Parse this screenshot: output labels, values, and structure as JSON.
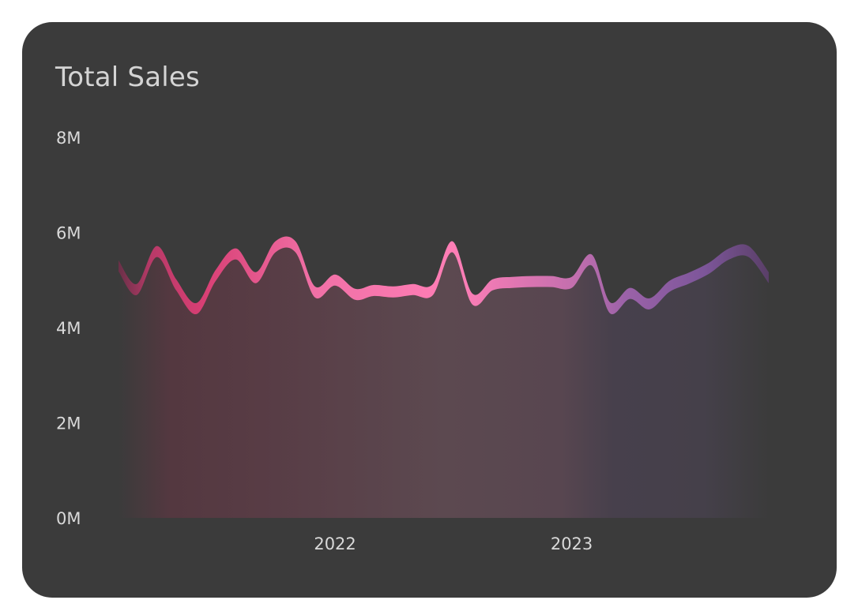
{
  "card": {
    "title": "Total Sales"
  },
  "colors": {
    "background": "#3b3b3b",
    "text": "#d4d4d4",
    "ribbon_start": "#c23a6e",
    "ribbon_mid": "#ff7eb6",
    "ribbon_end": "#7a4d8c"
  },
  "chart_data": {
    "type": "area",
    "title": "Total Sales",
    "xlabel": "",
    "ylabel": "",
    "ylim": [
      0,
      8000000
    ],
    "y_ticks": [
      {
        "value": 8000000,
        "label": "8M"
      },
      {
        "value": 6000000,
        "label": "6M"
      },
      {
        "value": 4000000,
        "label": "4M"
      },
      {
        "value": 2000000,
        "label": "2M"
      },
      {
        "value": 0,
        "label": "0M"
      }
    ],
    "x_ticks": [
      {
        "x": "2022-01-01",
        "label": "2022"
      },
      {
        "x": "2023-01-01",
        "label": "2023"
      }
    ],
    "x_range": [
      "2021-02-01",
      "2023-11-01"
    ],
    "grid": false,
    "legend": "none",
    "series": [
      {
        "x": [
          "2021-02-01",
          "2021-03-01",
          "2021-04-01",
          "2021-05-01",
          "2021-06-01",
          "2021-07-01",
          "2021-08-01",
          "2021-09-01",
          "2021-10-01",
          "2021-11-01",
          "2021-12-01",
          "2022-01-01",
          "2022-02-01",
          "2022-03-01",
          "2022-04-01",
          "2022-05-01",
          "2022-06-01",
          "2022-07-01",
          "2022-08-01",
          "2022-09-01",
          "2022-10-01",
          "2022-11-01",
          "2022-12-01",
          "2023-01-01",
          "2023-02-01",
          "2023-03-01",
          "2023-04-01",
          "2023-05-01",
          "2023-06-01",
          "2023-07-01",
          "2023-08-01",
          "2023-09-01",
          "2023-10-01",
          "2023-11-01"
        ],
        "values": [
          5300000,
          4800000,
          5600000,
          4900000,
          4400000,
          5100000,
          5550000,
          5050000,
          5700000,
          5700000,
          4750000,
          5000000,
          4700000,
          4780000,
          4750000,
          4800000,
          4800000,
          5700000,
          4600000,
          4900000,
          4950000,
          4970000,
          4970000,
          4950000,
          5420000,
          4420000,
          4720000,
          4500000,
          4870000,
          5040000,
          5250000,
          5550000,
          5600000,
          5050000
        ]
      }
    ]
  }
}
